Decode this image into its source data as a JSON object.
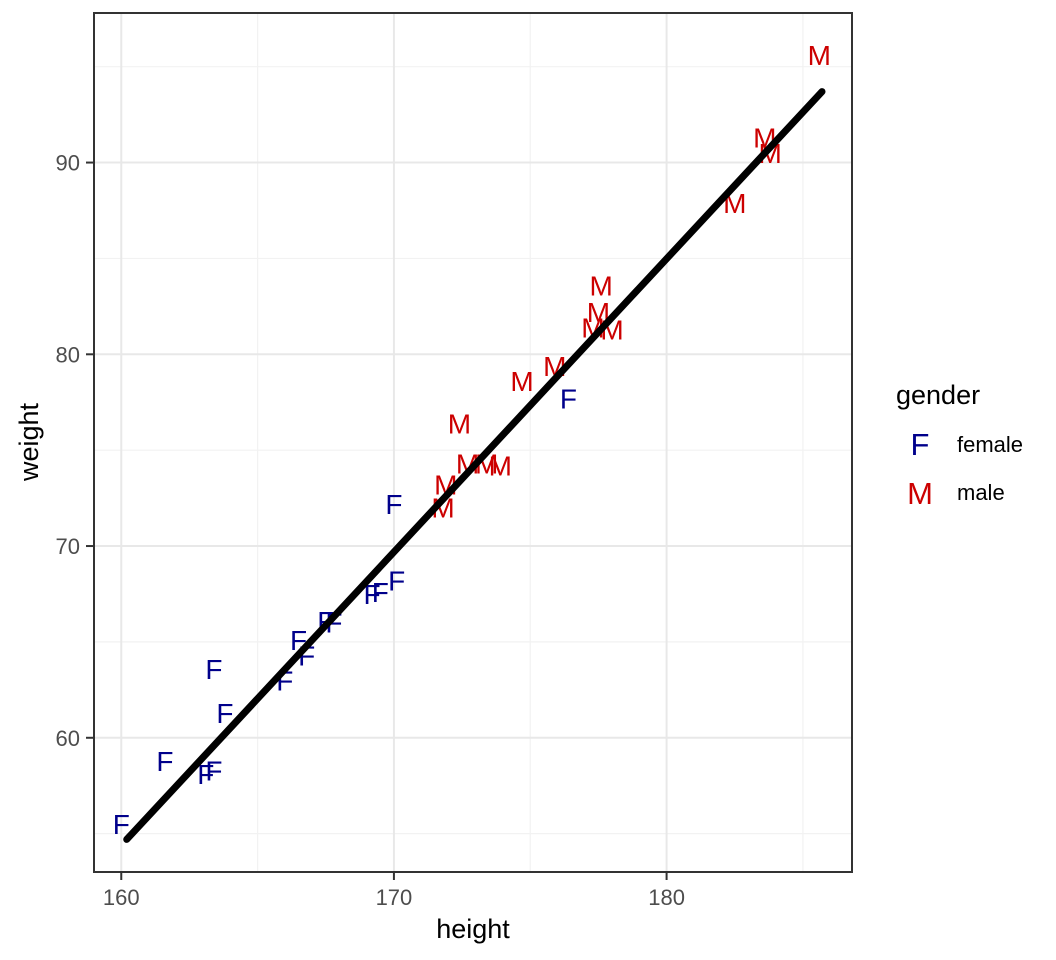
{
  "chart_data": {
    "type": "scatter",
    "title": "",
    "xlabel": "height",
    "ylabel": "weight",
    "xlim": [
      159.0,
      186.8
    ],
    "ylim": [
      53.0,
      97.8
    ],
    "x_major_ticks": [
      160,
      170,
      180
    ],
    "x_minor_ticks": [
      165,
      175,
      185
    ],
    "y_major_ticks": [
      60,
      70,
      80,
      90
    ],
    "y_minor_ticks": [
      55,
      65,
      75,
      85,
      95
    ],
    "grid": true,
    "marker_style": "text-letter",
    "series": [
      {
        "name": "female",
        "letter": "F",
        "color": "#00008B",
        "points": [
          [
            160.0,
            55.5
          ],
          [
            161.6,
            58.8
          ],
          [
            163.1,
            58.1
          ],
          [
            163.4,
            58.3
          ],
          [
            163.4,
            63.6
          ],
          [
            163.8,
            61.3
          ],
          [
            166.0,
            63.0
          ],
          [
            166.5,
            65.1
          ],
          [
            166.8,
            64.3
          ],
          [
            167.5,
            66.1
          ],
          [
            167.8,
            66.0
          ],
          [
            169.2,
            67.5
          ],
          [
            169.5,
            67.6
          ],
          [
            170.1,
            68.2
          ],
          [
            170.0,
            72.2
          ],
          [
            176.4,
            77.7
          ]
        ]
      },
      {
        "name": "male",
        "letter": "M",
        "color": "#CC0000",
        "points": [
          [
            171.8,
            72.0
          ],
          [
            171.9,
            73.2
          ],
          [
            172.4,
            76.4
          ],
          [
            172.7,
            74.3
          ],
          [
            173.4,
            74.3
          ],
          [
            173.9,
            74.2
          ],
          [
            174.7,
            78.6
          ],
          [
            175.9,
            79.4
          ],
          [
            177.3,
            81.4
          ],
          [
            177.5,
            82.2
          ],
          [
            177.6,
            83.6
          ],
          [
            178.0,
            81.3
          ],
          [
            182.5,
            87.9
          ],
          [
            183.6,
            91.3
          ],
          [
            183.8,
            90.5
          ],
          [
            185.6,
            95.6
          ]
        ]
      }
    ],
    "fit_line": {
      "color": "#000000",
      "x1": 160.2,
      "y1": 54.7,
      "x2": 185.7,
      "y2": 93.7
    },
    "legend": {
      "title": "gender",
      "position": "right",
      "entries": [
        {
          "key": "F",
          "label": "female"
        },
        {
          "key": "M",
          "label": "male"
        }
      ]
    },
    "colors": {
      "panel_background": "#ffffff",
      "panel_border": "#333333",
      "grid_major": "#e8e8e8",
      "grid_minor": "#f2f2f2",
      "tick_mark": "#333333",
      "tick_text": "#4d4d4d",
      "axis_title_text": "#000000"
    }
  }
}
